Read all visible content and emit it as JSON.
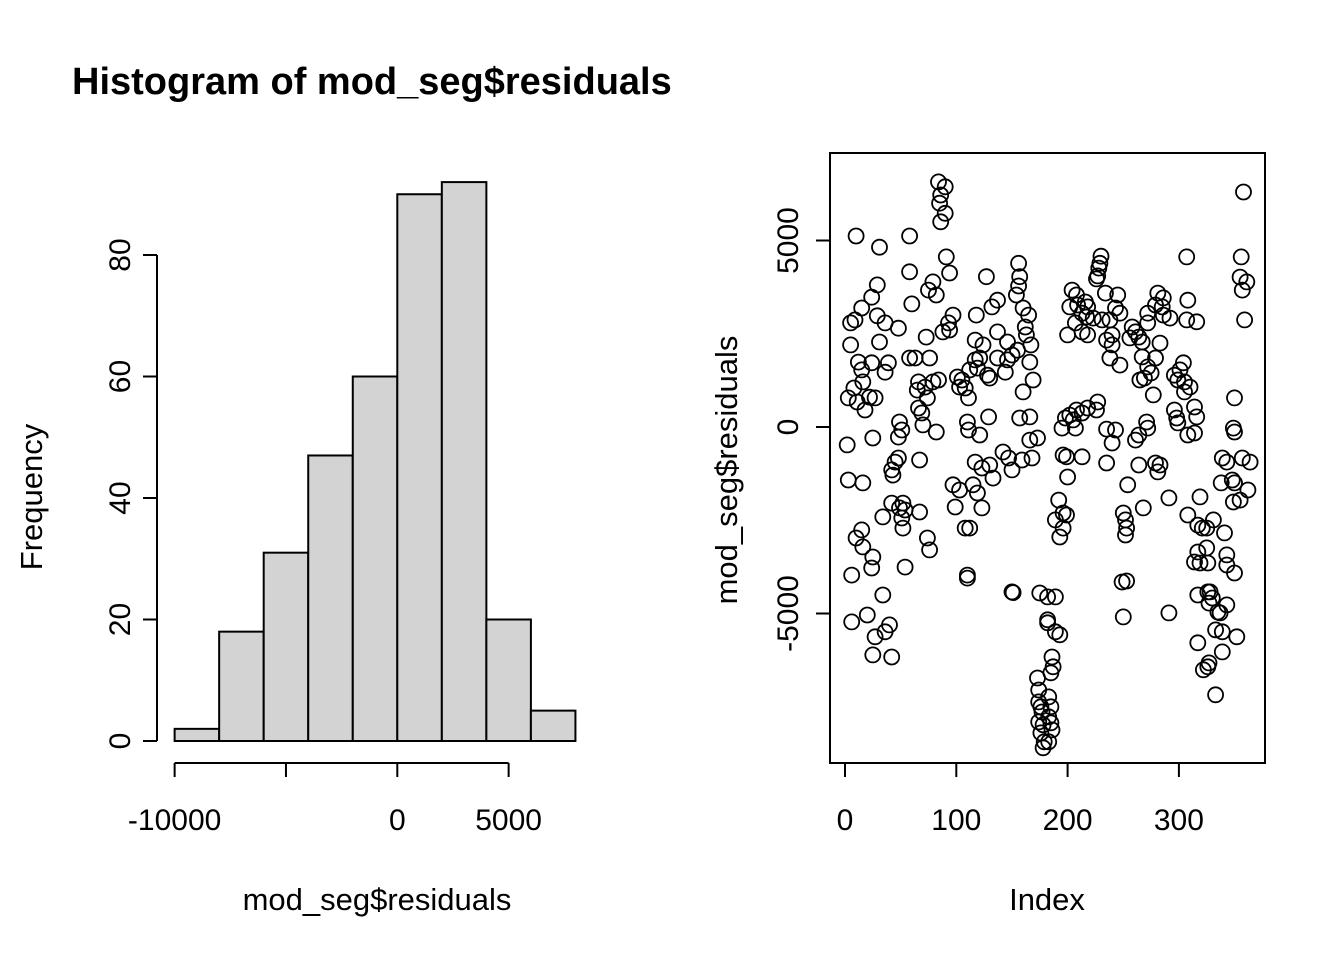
{
  "title": "Histogram of mod_seg$residuals",
  "colors": {
    "background": "#ffffff",
    "stroke": "#000000",
    "bar_fill": "#d3d3d3"
  },
  "chart_data": [
    {
      "type": "bar",
      "subtype": "histogram",
      "title": "Histogram of mod_seg$residuals",
      "xlabel": "mod_seg$residuals",
      "ylabel": "Frequency",
      "breaks": [
        -10000,
        -8000,
        -6000,
        -4000,
        -2000,
        0,
        2000,
        4000,
        6000,
        8000
      ],
      "counts": [
        2,
        18,
        31,
        47,
        60,
        90,
        92,
        20,
        5
      ],
      "xlim": [
        -10000,
        8000
      ],
      "ylim": [
        0,
        92
      ],
      "grid": false,
      "bar_fill": "#d3d3d3",
      "x_ticks": {
        "values": [
          -10000,
          -5000,
          0,
          5000
        ],
        "labels": [
          "-10000",
          "",
          "0",
          "5000"
        ]
      },
      "y_ticks": {
        "values": [
          0,
          20,
          40,
          60,
          80
        ],
        "labels": [
          "0",
          "20",
          "40",
          "60",
          "80"
        ]
      }
    },
    {
      "type": "scatter",
      "xlabel": "Index",
      "ylabel": "mod_seg$residuals",
      "marker": "open-circle",
      "xlim": [
        -13,
        379
      ],
      "ylim": [
        -8980,
        7260
      ],
      "grid": false,
      "x_ticks": {
        "values": [
          0,
          100,
          200,
          300
        ],
        "labels": [
          "0",
          "100",
          "200",
          "300"
        ]
      },
      "y_ticks": {
        "values": [
          -5000,
          0,
          5000
        ],
        "labels": [
          "-5000",
          "0",
          "5000"
        ]
      },
      "points": [
        [
          84,
          6570
        ],
        [
          90,
          6440
        ],
        [
          86,
          6220
        ],
        [
          85,
          6000
        ],
        [
          90,
          5730
        ],
        [
          86,
          5500
        ],
        [
          10,
          5120
        ],
        [
          58,
          5120
        ],
        [
          31,
          4820
        ],
        [
          91,
          4560
        ],
        [
          156,
          4390
        ],
        [
          58,
          4160
        ],
        [
          157,
          4030
        ],
        [
          94,
          4130
        ],
        [
          127,
          4030
        ],
        [
          79,
          3890
        ],
        [
          156,
          3780
        ],
        [
          75,
          3670
        ],
        [
          82,
          3540
        ],
        [
          154,
          3540
        ],
        [
          29,
          3810
        ],
        [
          24,
          3480
        ],
        [
          60,
          3300
        ],
        [
          15,
          3190
        ],
        [
          29,
          2980
        ],
        [
          9,
          2870
        ],
        [
          36,
          2790
        ],
        [
          97,
          3000
        ],
        [
          93,
          2790
        ],
        [
          118,
          3000
        ],
        [
          132,
          3220
        ],
        [
          137,
          3400
        ],
        [
          48,
          2650
        ],
        [
          5,
          2790
        ],
        [
          73,
          2410
        ],
        [
          88,
          2550
        ],
        [
          94,
          2600
        ],
        [
          117,
          2330
        ],
        [
          124,
          2200
        ],
        [
          5,
          2200
        ],
        [
          31,
          2280
        ],
        [
          137,
          2550
        ],
        [
          162,
          2680
        ],
        [
          163,
          2470
        ],
        [
          165,
          3000
        ],
        [
          160,
          3190
        ],
        [
          167,
          2200
        ],
        [
          150,
          1930
        ],
        [
          155,
          2060
        ],
        [
          146,
          2280
        ],
        [
          358,
          6300
        ],
        [
          307,
          4560
        ],
        [
          356,
          4560
        ],
        [
          230,
          4580
        ],
        [
          229,
          4390
        ],
        [
          228,
          4260
        ],
        [
          227,
          4050
        ],
        [
          226,
          3970
        ],
        [
          355,
          4020
        ],
        [
          361,
          3890
        ],
        [
          357,
          3670
        ],
        [
          359,
          2870
        ],
        [
          204,
          3670
        ],
        [
          208,
          3540
        ],
        [
          202,
          3220
        ],
        [
          209,
          3270
        ],
        [
          216,
          3350
        ],
        [
          218,
          3220
        ],
        [
          213,
          3050
        ],
        [
          217,
          2950
        ],
        [
          223,
          2920
        ],
        [
          207,
          2790
        ],
        [
          213,
          2550
        ],
        [
          218,
          2470
        ],
        [
          200,
          2470
        ],
        [
          234,
          3590
        ],
        [
          245,
          3540
        ],
        [
          243,
          3190
        ],
        [
          247,
          3050
        ],
        [
          238,
          2870
        ],
        [
          231,
          2870
        ],
        [
          240,
          2470
        ],
        [
          235,
          2330
        ],
        [
          281,
          3590
        ],
        [
          286,
          3460
        ],
        [
          279,
          3270
        ],
        [
          285,
          3220
        ],
        [
          272,
          3050
        ],
        [
          286,
          3000
        ],
        [
          292,
          2920
        ],
        [
          308,
          3400
        ],
        [
          307,
          2870
        ],
        [
          316,
          2820
        ],
        [
          258,
          2680
        ],
        [
          261,
          2550
        ],
        [
          264,
          2410
        ],
        [
          256,
          2390
        ],
        [
          267,
          2280
        ],
        [
          272,
          2790
        ],
        [
          283,
          2250
        ],
        [
          240,
          2200
        ],
        [
          12,
          1740
        ],
        [
          24,
          1720
        ],
        [
          39,
          1720
        ],
        [
          58,
          1850
        ],
        [
          63,
          1850
        ],
        [
          76,
          1850
        ],
        [
          117,
          1800
        ],
        [
          121,
          1850
        ],
        [
          137,
          1850
        ],
        [
          146,
          1800
        ],
        [
          166,
          1740
        ],
        [
          15,
          1530
        ],
        [
          36,
          1470
        ],
        [
          16,
          1210
        ],
        [
          8,
          1045
        ],
        [
          3,
          780
        ],
        [
          11,
          670
        ],
        [
          22,
          800
        ],
        [
          27,
          780
        ],
        [
          18,
          455
        ],
        [
          66,
          1210
        ],
        [
          72,
          1070
        ],
        [
          65,
          990
        ],
        [
          74,
          780
        ],
        [
          79,
          1210
        ],
        [
          84,
          1260
        ],
        [
          101,
          1340
        ],
        [
          105,
          1260
        ],
        [
          103,
          1070
        ],
        [
          108,
          1045
        ],
        [
          112,
          1530
        ],
        [
          119,
          1580
        ],
        [
          128,
          1390
        ],
        [
          130,
          1310
        ],
        [
          111,
          780
        ],
        [
          144,
          1470
        ],
        [
          160,
          940
        ],
        [
          169,
          1260
        ],
        [
          157,
          240
        ],
        [
          166,
          270
        ],
        [
          66,
          510
        ],
        [
          69,
          375
        ],
        [
          70,
          55
        ],
        [
          49,
          135
        ],
        [
          51,
          -80
        ],
        [
          48,
          -270
        ],
        [
          82,
          -135
        ],
        [
          110,
          135
        ],
        [
          111,
          -80
        ],
        [
          121,
          -215
        ],
        [
          129,
          270
        ],
        [
          25,
          -295
        ],
        [
          2,
          -480
        ],
        [
          48,
          -830
        ],
        [
          45,
          -940
        ],
        [
          67,
          -885
        ],
        [
          42,
          -1150
        ],
        [
          43,
          -1290
        ],
        [
          3,
          -1420
        ],
        [
          16,
          -1500
        ],
        [
          117,
          -940
        ],
        [
          123,
          -1100
        ],
        [
          130,
          -1020
        ],
        [
          133,
          -1370
        ],
        [
          142,
          -670
        ],
        [
          147,
          -830
        ],
        [
          150,
          -1150
        ],
        [
          159,
          -885
        ],
        [
          168,
          -830
        ],
        [
          166,
          -350
        ],
        [
          173,
          -295
        ],
        [
          97,
          -1550
        ],
        [
          103,
          -1690
        ],
        [
          115,
          -1550
        ],
        [
          119,
          -1770
        ],
        [
          99,
          -2145
        ],
        [
          123,
          -2170
        ],
        [
          42,
          -2040
        ],
        [
          52,
          -2040
        ],
        [
          49,
          -2170
        ],
        [
          54,
          -2225
        ],
        [
          67,
          -2280
        ],
        [
          34,
          -2410
        ],
        [
          51,
          -2440
        ],
        [
          52,
          -2710
        ],
        [
          15,
          -2760
        ],
        [
          10,
          -2975
        ],
        [
          16,
          -3215
        ],
        [
          74,
          -2975
        ],
        [
          76,
          -3295
        ],
        [
          108,
          -2710
        ],
        [
          112,
          -2710
        ],
        [
          25,
          -3485
        ],
        [
          238,
          1850
        ],
        [
          247,
          1660
        ],
        [
          267,
          1880
        ],
        [
          279,
          1850
        ],
        [
          272,
          1610
        ],
        [
          275,
          1450
        ],
        [
          269,
          1310
        ],
        [
          265,
          1260
        ],
        [
          304,
          1720
        ],
        [
          301,
          1530
        ],
        [
          296,
          1390
        ],
        [
          299,
          1260
        ],
        [
          305,
          1210
        ],
        [
          310,
          1070
        ],
        [
          305,
          940
        ],
        [
          277,
          860
        ],
        [
          350,
          780
        ],
        [
          227,
          670
        ],
        [
          218,
          510
        ],
        [
          226,
          455
        ],
        [
          208,
          455
        ],
        [
          213,
          375
        ],
        [
          202,
          320
        ],
        [
          205,
          190
        ],
        [
          198,
          240
        ],
        [
          195,
          -30
        ],
        [
          207,
          -30
        ],
        [
          296,
          455
        ],
        [
          298,
          240
        ],
        [
          299,
          110
        ],
        [
          314,
          535
        ],
        [
          316,
          270
        ],
        [
          308,
          -215
        ],
        [
          314,
          -160
        ],
        [
          235,
          -55
        ],
        [
          243,
          -80
        ],
        [
          240,
          -430
        ],
        [
          271,
          135
        ],
        [
          272,
          -30
        ],
        [
          264,
          -215
        ],
        [
          261,
          -350
        ],
        [
          349,
          -30
        ],
        [
          350,
          -135
        ],
        [
          196,
          -750
        ],
        [
          199,
          -800
        ],
        [
          213,
          -800
        ],
        [
          235,
          -965
        ],
        [
          200,
          -1340
        ],
        [
          264,
          -1020
        ],
        [
          279,
          -965
        ],
        [
          283,
          -1020
        ],
        [
          281,
          -1205
        ],
        [
          254,
          -1550
        ],
        [
          339,
          -830
        ],
        [
          343,
          -940
        ],
        [
          357,
          -830
        ],
        [
          364,
          -940
        ],
        [
          338,
          -1500
        ],
        [
          348,
          -1420
        ],
        [
          350,
          -1500
        ],
        [
          362,
          -1690
        ],
        [
          355,
          -1960
        ],
        [
          349,
          -2010
        ],
        [
          291,
          -1900
        ],
        [
          319,
          -1875
        ],
        [
          192,
          -1960
        ],
        [
          196,
          -2305
        ],
        [
          199,
          -2360
        ],
        [
          189,
          -2490
        ],
        [
          196,
          -2710
        ],
        [
          193,
          -2950
        ],
        [
          268,
          -2170
        ],
        [
          250,
          -2305
        ],
        [
          252,
          -2490
        ],
        [
          253,
          -2710
        ],
        [
          252,
          -2895
        ],
        [
          308,
          -2360
        ],
        [
          317,
          -2630
        ],
        [
          321,
          -2710
        ],
        [
          325,
          -2710
        ],
        [
          331,
          -2490
        ],
        [
          341,
          -2840
        ],
        [
          317,
          -3350
        ],
        [
          325,
          -3240
        ],
        [
          343,
          -3430
        ],
        [
          6,
          -3970
        ],
        [
          24,
          -3780
        ],
        [
          54,
          -3755
        ],
        [
          34,
          -4505
        ],
        [
          6,
          -5225
        ],
        [
          20,
          -5040
        ],
        [
          40,
          -5305
        ],
        [
          27,
          -5625
        ],
        [
          36,
          -5490
        ],
        [
          25,
          -6110
        ],
        [
          42,
          -6165
        ],
        [
          110,
          -3970
        ],
        [
          110,
          -4050
        ],
        [
          150,
          -4420
        ],
        [
          151,
          -4440
        ],
        [
          175,
          -4450
        ],
        [
          182,
          -4555
        ],
        [
          182,
          -5250
        ],
        [
          173,
          -6730
        ],
        [
          174,
          -7050
        ],
        [
          174,
          -7370
        ],
        [
          176,
          -7500
        ],
        [
          177,
          -7640
        ],
        [
          174,
          -7905
        ],
        [
          178,
          -7985
        ],
        [
          176,
          -8200
        ],
        [
          179,
          -8440
        ],
        [
          178,
          -8600
        ],
        [
          189,
          -4555
        ],
        [
          182,
          -5170
        ],
        [
          189,
          -5490
        ],
        [
          193,
          -5570
        ],
        [
          186,
          -6165
        ],
        [
          187,
          -6430
        ],
        [
          185,
          -6590
        ],
        [
          183,
          -7235
        ],
        [
          185,
          -7500
        ],
        [
          183,
          -7770
        ],
        [
          185,
          -7930
        ],
        [
          186,
          -8120
        ],
        [
          183,
          -8440
        ],
        [
          249,
          -4155
        ],
        [
          253,
          -4130
        ],
        [
          250,
          -5090
        ],
        [
          291,
          -4985
        ],
        [
          319,
          -3645
        ],
        [
          314,
          -3620
        ],
        [
          326,
          -3645
        ],
        [
          343,
          -3700
        ],
        [
          350,
          -3915
        ],
        [
          317,
          -4505
        ],
        [
          326,
          -4420
        ],
        [
          328,
          -4420
        ],
        [
          330,
          -4585
        ],
        [
          327,
          -4720
        ],
        [
          335,
          -4960
        ],
        [
          337,
          -4985
        ],
        [
          343,
          -4770
        ],
        [
          333,
          -5440
        ],
        [
          339,
          -5490
        ],
        [
          352,
          -5625
        ],
        [
          317,
          -5785
        ],
        [
          339,
          -6030
        ],
        [
          327,
          -6325
        ],
        [
          326,
          -6430
        ],
        [
          322,
          -6510
        ],
        [
          333,
          -7180
        ]
      ]
    }
  ]
}
